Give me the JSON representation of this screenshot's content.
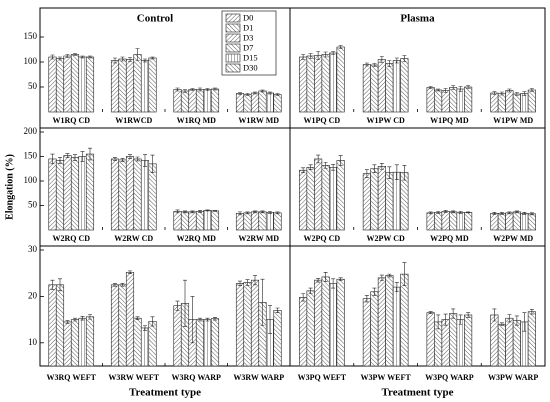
{
  "chart_data": [
    {
      "type": "bar",
      "title": "Control",
      "legend": "top-right",
      "categories": [
        "W1RQ CD",
        "W1RWCD",
        "W1RQ MD",
        "W1RW MD"
      ],
      "ylim": [
        0,
        200
      ],
      "yticks": [
        50,
        100,
        150
      ],
      "series": [
        {
          "name": "D0",
          "hatch": "/",
          "color": "#333333",
          "values": [
            110,
            103,
            45,
            37
          ],
          "errors": [
            4,
            5,
            3,
            2
          ]
        },
        {
          "name": "D1",
          "hatch": "\\",
          "color": "#333333",
          "values": [
            107,
            106,
            42,
            35
          ],
          "errors": [
            3,
            4,
            3,
            2
          ]
        },
        {
          "name": "D3",
          "hatch": "/",
          "color": "#333333",
          "values": [
            112,
            105,
            45,
            38
          ],
          "errors": [
            3,
            4,
            2,
            2
          ]
        },
        {
          "name": "D7",
          "hatch": "\\",
          "color": "#333333",
          "values": [
            115,
            115,
            45,
            42
          ],
          "errors": [
            2,
            12,
            3,
            2
          ]
        },
        {
          "name": "D15",
          "hatch": "|",
          "color": "#333333",
          "values": [
            110,
            103,
            45,
            38
          ],
          "errors": [
            2,
            3,
            2,
            2
          ]
        },
        {
          "name": "D30",
          "hatch": "\\",
          "color": "#333333",
          "values": [
            110,
            108,
            46,
            35
          ],
          "errors": [
            2,
            2,
            2,
            2
          ]
        }
      ]
    },
    {
      "type": "bar",
      "title": "Plasma",
      "categories": [
        "W1PQ CD",
        "W1PW CD",
        "W1PQ MD",
        "W1PW MD"
      ],
      "ylim": [
        0,
        200
      ],
      "series": [
        {
          "values": [
            110,
            95,
            49,
            38
          ],
          "errors": [
            5,
            3,
            2,
            3
          ]
        },
        {
          "values": [
            112,
            94,
            44,
            37
          ],
          "errors": [
            5,
            3,
            2,
            3
          ]
        },
        {
          "values": [
            113,
            105,
            43,
            43
          ],
          "errors": [
            8,
            6,
            4,
            3
          ]
        },
        {
          "values": [
            115,
            97,
            49,
            36
          ],
          "errors": [
            5,
            6,
            4,
            3
          ]
        },
        {
          "values": [
            118,
            103,
            46,
            37
          ],
          "errors": [
            3,
            5,
            5,
            4
          ]
        },
        {
          "values": [
            130,
            107,
            50,
            44
          ],
          "errors": [
            3,
            6,
            3,
            3
          ]
        }
      ]
    },
    {
      "type": "bar",
      "y_label": "Elongation (%)",
      "categories": [
        "W2RQ CD",
        "W2RW CD",
        "W2RQ MD",
        "W2RW MD"
      ],
      "ylim": [
        0,
        200
      ],
      "yticks": [
        50,
        100,
        150,
        200
      ],
      "series": [
        {
          "values": [
            145,
            145,
            38,
            34
          ],
          "errors": [
            10,
            3,
            3,
            3
          ]
        },
        {
          "values": [
            142,
            143,
            37,
            35
          ],
          "errors": [
            6,
            3,
            2,
            2
          ]
        },
        {
          "values": [
            152,
            150,
            37,
            37
          ],
          "errors": [
            4,
            4,
            2,
            2
          ]
        },
        {
          "values": [
            148,
            145,
            38,
            37
          ],
          "errors": [
            6,
            4,
            2,
            2
          ]
        },
        {
          "values": [
            150,
            142,
            40,
            36
          ],
          "errors": [
            10,
            12,
            1,
            2
          ]
        },
        {
          "values": [
            155,
            135,
            39,
            35
          ],
          "errors": [
            12,
            18,
            1,
            2
          ]
        }
      ]
    },
    {
      "type": "bar",
      "categories": [
        "W2PQ CD",
        "W2PW CD",
        "W2PQ MD",
        "W2PW MD"
      ],
      "ylim": [
        0,
        200
      ],
      "series": [
        {
          "values": [
            122,
            115,
            35,
            34
          ],
          "errors": [
            5,
            8,
            2,
            2
          ]
        },
        {
          "values": [
            128,
            125,
            36,
            34
          ],
          "errors": [
            5,
            8,
            2,
            2
          ]
        },
        {
          "values": [
            145,
            130,
            38,
            35
          ],
          "errors": [
            8,
            6,
            2,
            2
          ]
        },
        {
          "values": [
            132,
            117,
            37,
            37
          ],
          "errors": [
            6,
            12,
            2,
            2
          ]
        },
        {
          "values": [
            128,
            118,
            36,
            34
          ],
          "errors": [
            6,
            15,
            2,
            2
          ]
        },
        {
          "values": [
            142,
            117,
            36,
            33
          ],
          "errors": [
            10,
            15,
            1,
            2
          ]
        }
      ]
    },
    {
      "type": "bar",
      "x_label": "Treatment type",
      "categories": [
        "W3RQ WEFT",
        "W3RW WEFT",
        "W3RQ WARP",
        "W3RW WARP"
      ],
      "ylim": [
        5,
        30
      ],
      "yticks": [
        10,
        20,
        30
      ],
      "series": [
        {
          "values": [
            22.5,
            22.5,
            18,
            22.8
          ],
          "errors": [
            1,
            0.3,
            1,
            0.5
          ]
        },
        {
          "values": [
            22.5,
            22.5,
            18.5,
            23
          ],
          "errors": [
            1.3,
            0.3,
            5,
            0.6
          ]
        },
        {
          "values": [
            14.5,
            25.2,
            15,
            23.5
          ],
          "errors": [
            0.3,
            0.3,
            5,
            1
          ]
        },
        {
          "values": [
            15,
            15.3,
            15,
            18.7
          ],
          "errors": [
            0.3,
            0.3,
            0.3,
            5
          ]
        },
        {
          "values": [
            15.3,
            13.2,
            15,
            15
          ],
          "errors": [
            0.4,
            0.5,
            0.3,
            3
          ]
        },
        {
          "values": [
            15.6,
            14.6,
            15.2,
            17
          ],
          "errors": [
            0.5,
            1,
            0.3,
            0.5
          ]
        }
      ]
    },
    {
      "type": "bar",
      "x_label": "Treatment type",
      "categories": [
        "W3PQ WEFT",
        "W3PW WEFT",
        "W3PQ WARP",
        "W3PW WARP"
      ],
      "ylim": [
        5,
        30
      ],
      "series": [
        {
          "values": [
            19.8,
            19.5,
            16.5,
            16
          ],
          "errors": [
            0.8,
            0.7,
            0.2,
            1.3
          ]
        },
        {
          "values": [
            21.2,
            21,
            14.5,
            14
          ],
          "errors": [
            0.6,
            0.8,
            1.5,
            0.3
          ]
        },
        {
          "values": [
            23.5,
            24,
            15,
            15.3
          ],
          "errors": [
            0.4,
            0.6,
            1.2,
            0.8
          ]
        },
        {
          "values": [
            24.2,
            24.5,
            16.3,
            14.8
          ],
          "errors": [
            1,
            0.3,
            1,
            1
          ]
        },
        {
          "values": [
            22.8,
            22,
            15,
            14.5
          ],
          "errors": [
            1,
            1,
            1,
            2
          ]
        },
        {
          "values": [
            23.7,
            24.8,
            16,
            16.7
          ],
          "errors": [
            0.3,
            2.5,
            0.5,
            0.5
          ]
        }
      ]
    }
  ]
}
